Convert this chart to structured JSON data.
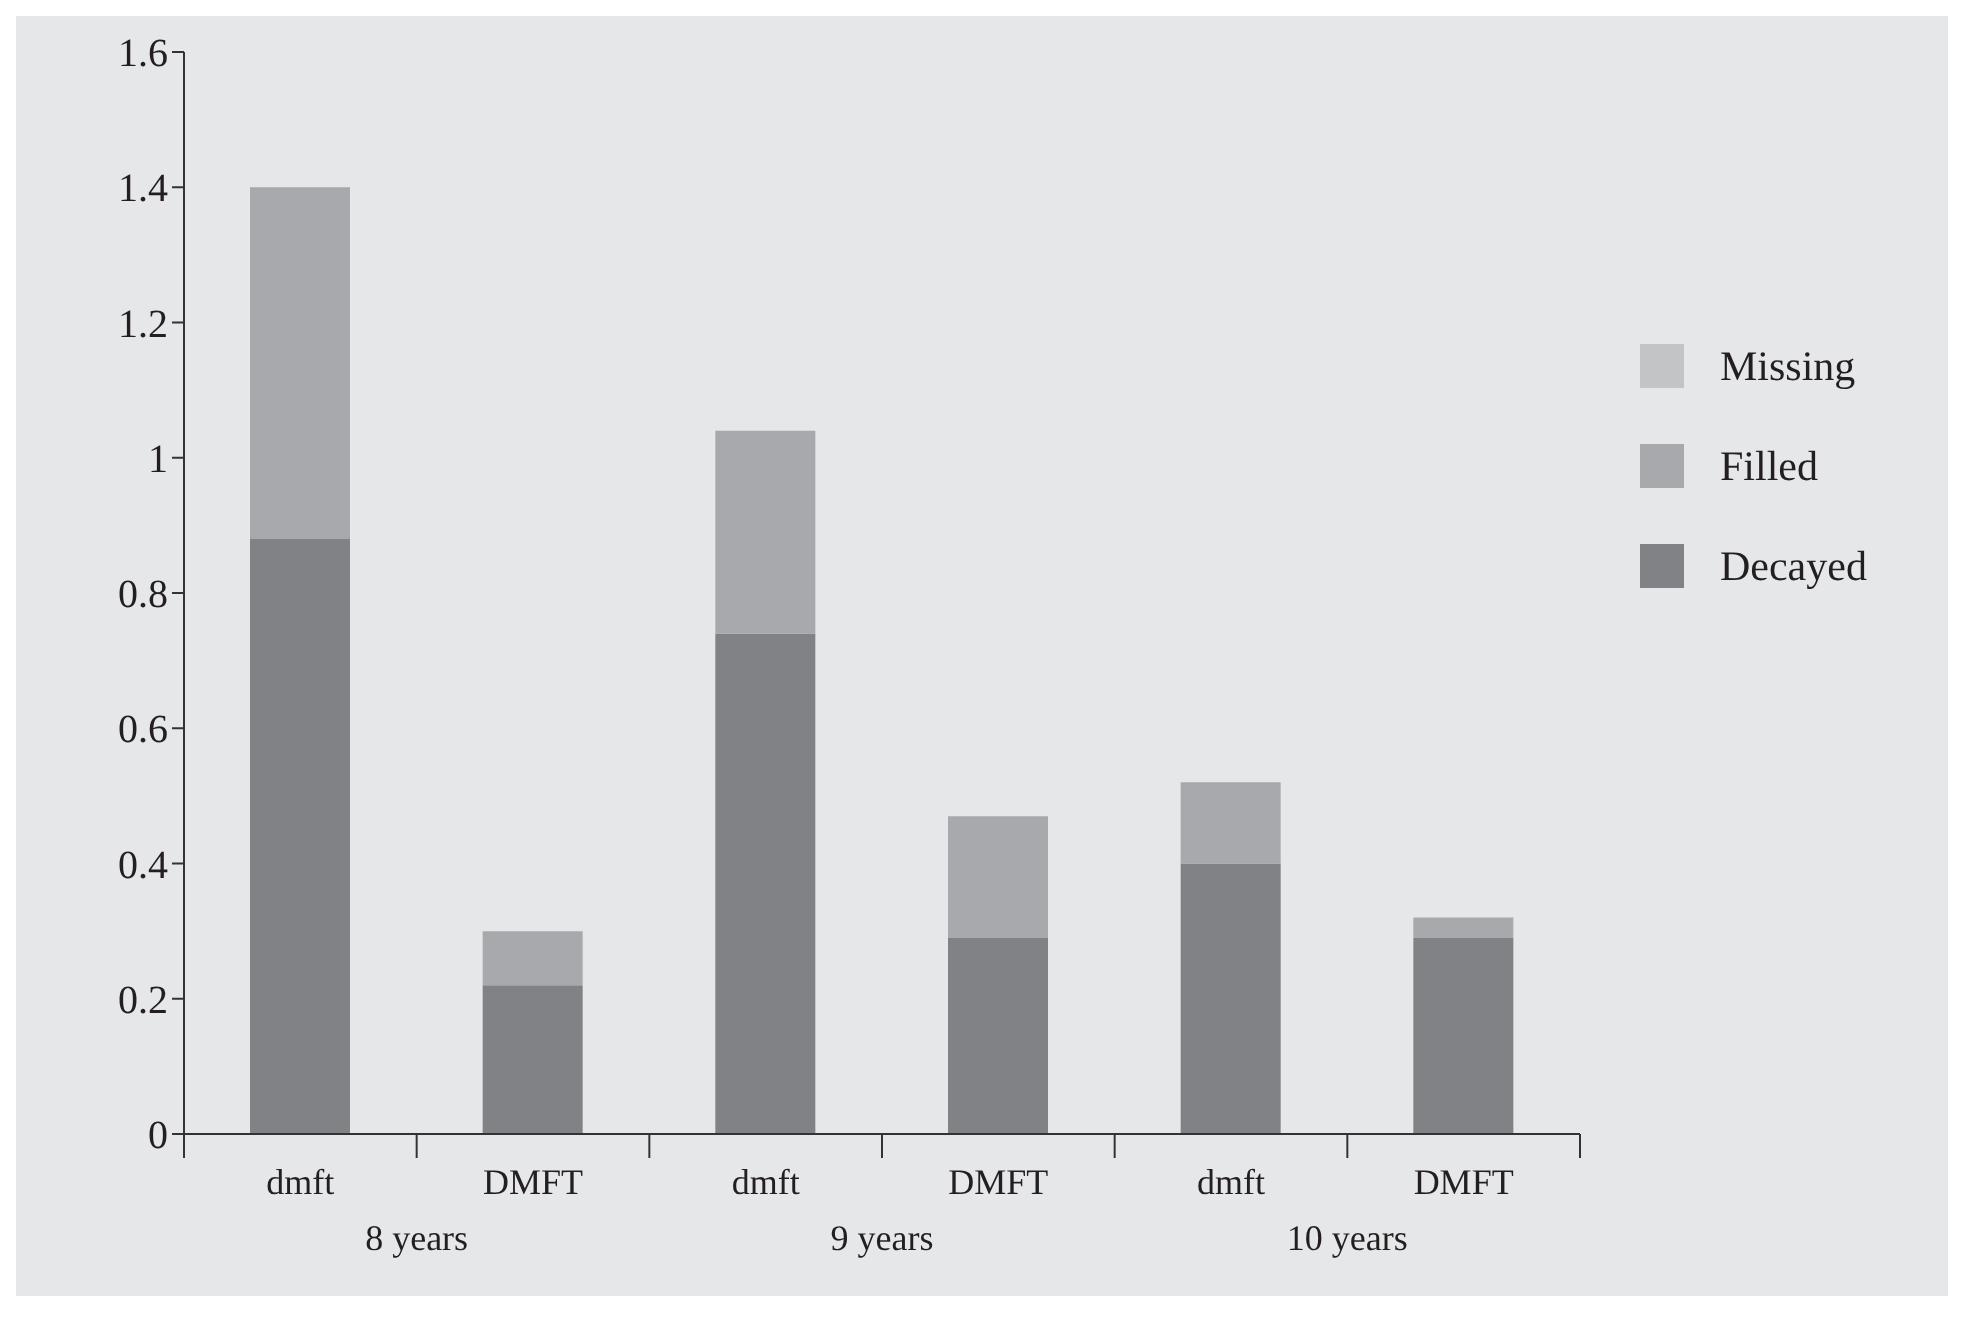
{
  "chart_data": {
    "type": "bar",
    "stacked": true,
    "categories": [
      "dmft",
      "DMFT",
      "dmft",
      "DMFT",
      "dmft",
      "DMFT"
    ],
    "series": [
      {
        "name": "Decayed",
        "color": "#818286",
        "values": [
          0.88,
          0.22,
          0.74,
          0.29,
          0.4,
          0.29
        ]
      },
      {
        "name": "Filled",
        "color": "#a8a9ac",
        "values": [
          0.52,
          0.08,
          0.3,
          0.18,
          0.12,
          0.03
        ]
      },
      {
        "name": "Missing",
        "color": "#c3c4c6",
        "values": [
          0,
          0,
          0,
          0,
          0,
          0
        ]
      }
    ],
    "annotations": [
      "8 years",
      "9 years",
      "10 years"
    ],
    "ylim": [
      0,
      1.6
    ],
    "yticks": [
      0,
      0.2,
      0.4,
      0.6,
      0.8,
      1,
      1.2,
      1.4,
      1.6
    ],
    "grid": false,
    "legend": "right"
  }
}
